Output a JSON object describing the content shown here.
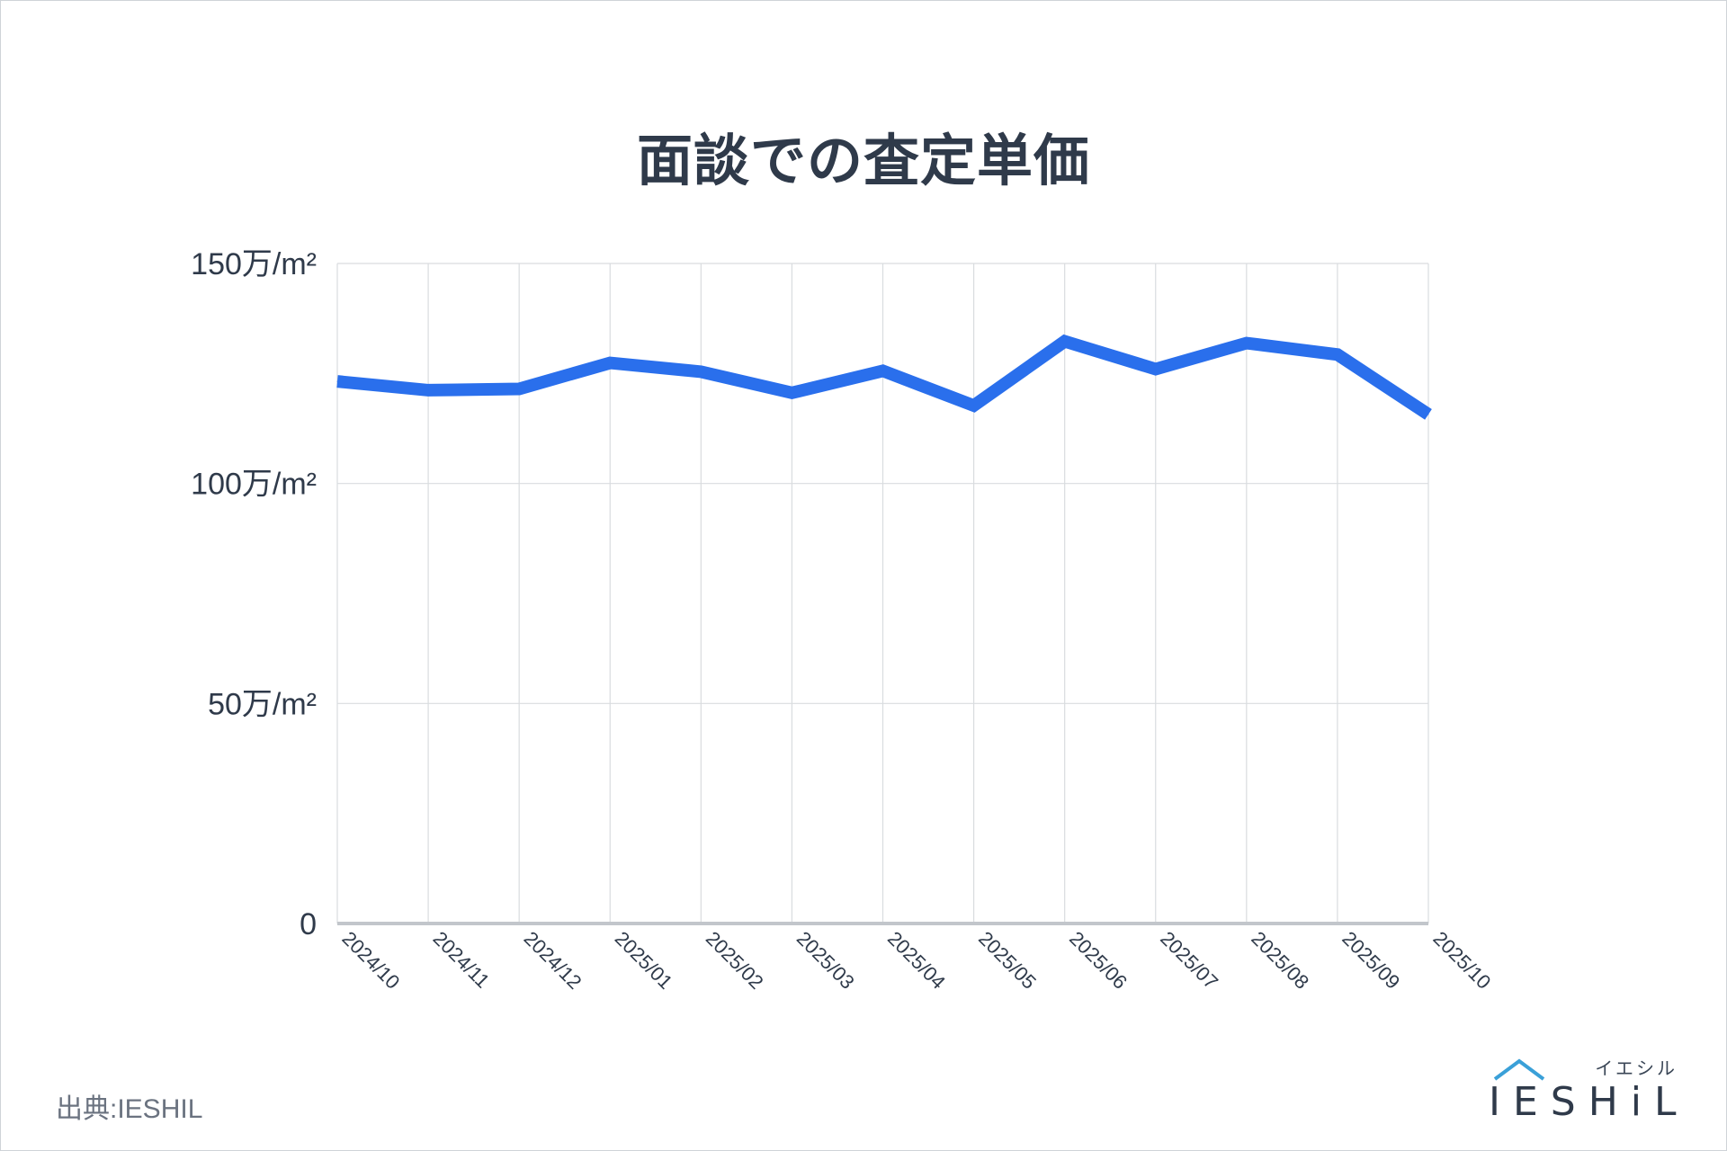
{
  "title": "面談での査定単価",
  "source": "出典:IESHIL",
  "logo": {
    "kana": "イエシル",
    "word": "IESHiL"
  },
  "colors": {
    "line": "#2a6fec",
    "grid": "#d9dcdf",
    "axis": "#c2c6cb",
    "text": "#2f3a4a"
  },
  "chart_data": {
    "type": "line",
    "title": "面談での査定単価",
    "categories": [
      "2024/10",
      "2024/11",
      "2024/12",
      "2025/01",
      "2025/02",
      "2025/03",
      "2025/04",
      "2025/05",
      "2025/06",
      "2025/07",
      "2025/08",
      "2025/09",
      "2025/10"
    ],
    "series": [
      {
        "values": [
          123.2,
          121.2,
          121.5,
          127.4,
          125.4,
          120.6,
          125.6,
          117.7,
          132.3,
          126.0,
          131.9,
          129.3,
          115.7
        ]
      }
    ],
    "ylim": [
      0,
      150
    ],
    "yticks": [
      0,
      50,
      100,
      150
    ],
    "ytick_labels": [
      "0",
      "50万/m²",
      "100万/m²",
      "150万/m²"
    ],
    "grid": true
  }
}
